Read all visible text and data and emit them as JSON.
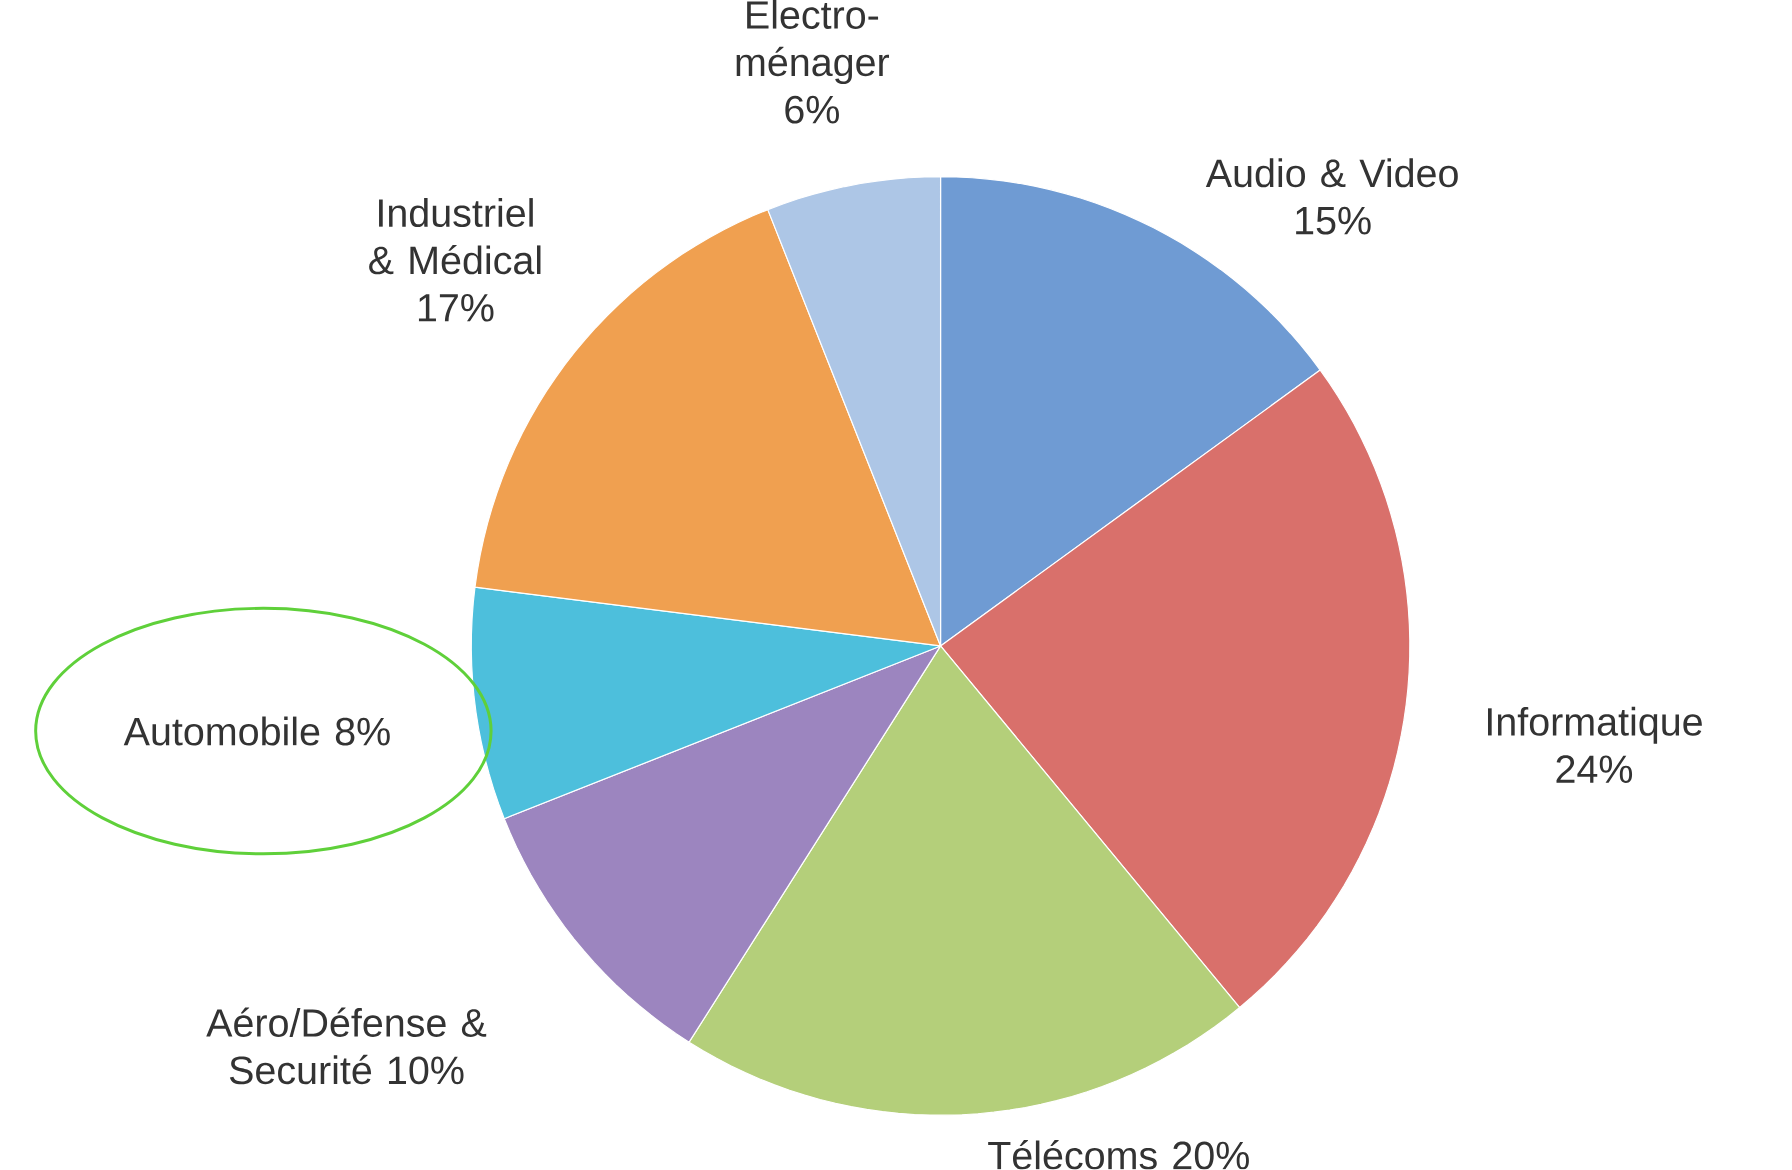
{
  "chart_data": {
    "type": "pie",
    "categories": [
      "Audio & Video",
      "Informatique",
      "Télécoms",
      "Aéro/Défense & Securité",
      "Automobile",
      "Industriel & Médical",
      "Electro-ménager"
    ],
    "values": [
      15,
      24,
      20,
      10,
      8,
      17,
      6
    ],
    "value_labels": [
      "15%",
      "24%",
      "20%",
      "10%",
      "8%",
      "17%",
      "6%"
    ],
    "colors": [
      "#6f9bd3",
      "#d9706b",
      "#b4cf7a",
      "#9c85bf",
      "#4dbfdc",
      "#f0a050",
      "#adc6e6"
    ]
  }
}
